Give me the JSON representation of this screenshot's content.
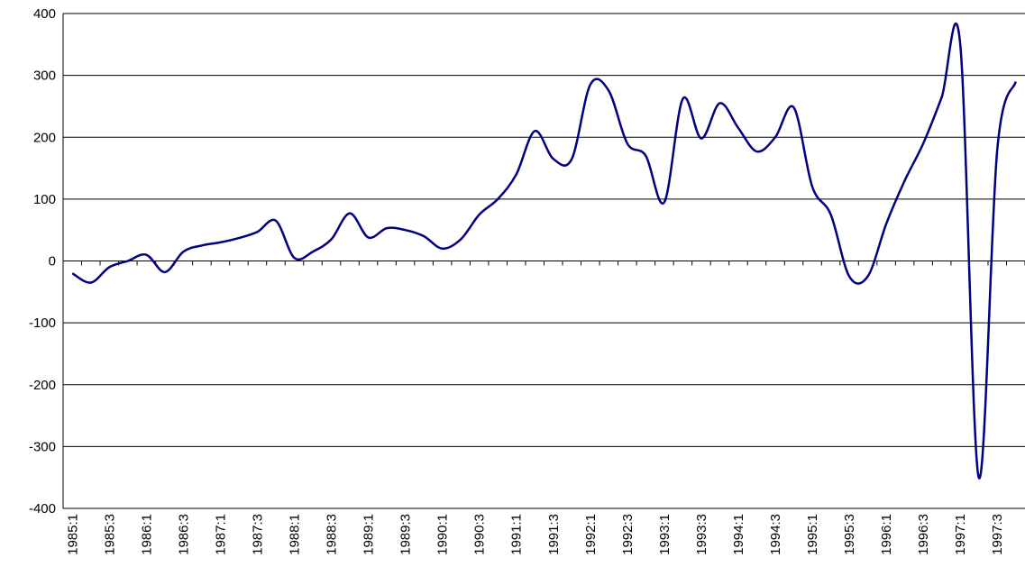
{
  "chart_data": {
    "type": "line",
    "categories": [
      "1985:1",
      null,
      "1985:3",
      null,
      "1986:1",
      null,
      "1986:3",
      null,
      "1987:1",
      null,
      "1987:3",
      null,
      "1988:1",
      null,
      "1988:3",
      null,
      "1989:1",
      null,
      "1989:3",
      null,
      "1990:1",
      null,
      "1990:3",
      null,
      "1991:1",
      null,
      "1991:3",
      null,
      "1992:1",
      null,
      "1992:3",
      null,
      "1993:1",
      null,
      "1993:3",
      null,
      "1994:1",
      null,
      "1994:3",
      null,
      "1995:1",
      null,
      "1995:3",
      null,
      "1996:1",
      null,
      "1996:3",
      null,
      "1997:1",
      null,
      "1997:3",
      null
    ],
    "series": [
      {
        "color": "#000080",
        "values": [
          -20,
          -35,
          -10,
          0,
          10,
          -18,
          15,
          25,
          30,
          37,
          47,
          65,
          5,
          15,
          35,
          77,
          38,
          53,
          50,
          40,
          20,
          35,
          75,
          100,
          140,
          210,
          165,
          165,
          285,
          275,
          190,
          170,
          95,
          262,
          198,
          255,
          215,
          177,
          200,
          248,
          120,
          75,
          -25,
          -25,
          60,
          130,
          190,
          265,
          350,
          -350,
          180,
          290
        ]
      }
    ],
    "ylim": [
      -400,
      400
    ],
    "yticks": [
      -400,
      -300,
      -200,
      -100,
      0,
      100,
      200,
      300,
      400
    ],
    "grid": true
  }
}
